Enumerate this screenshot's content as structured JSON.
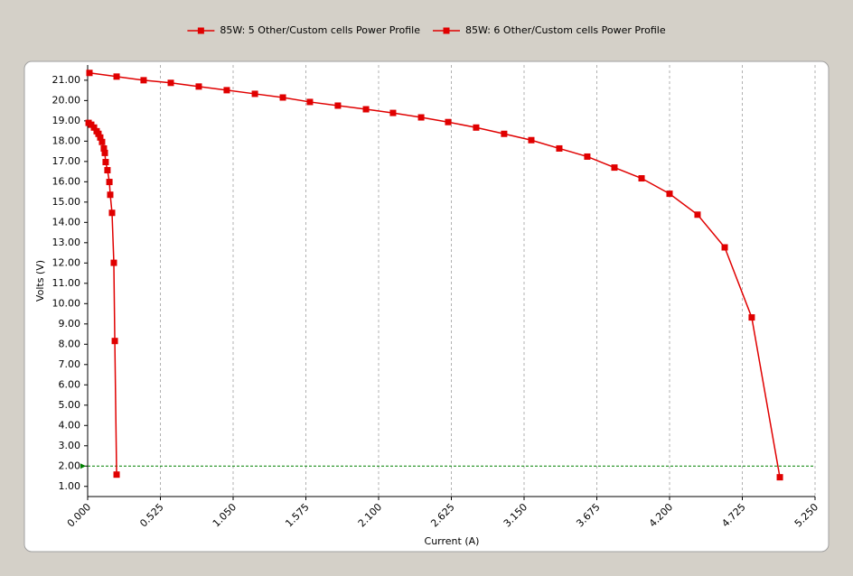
{
  "chart_data": {
    "type": "line",
    "xlabel": "Current (A)",
    "ylabel": "Volts (V)",
    "xlim": [
      0,
      5.25
    ],
    "ylim": [
      0.5,
      21.75
    ],
    "xticks": [
      {
        "value": 0,
        "label": "0.000"
      },
      0.525,
      {
        "value": 1.05,
        "label": "1.050"
      },
      1.575,
      {
        "value": 2.1,
        "label": "2.100"
      },
      2.625,
      {
        "value": 3.15,
        "label": "3.150"
      },
      3.675,
      {
        "value": 4.2,
        "label": "4.200"
      },
      4.725,
      {
        "value": 5.25,
        "label": "5.250"
      }
    ],
    "yticks": [
      {
        "value": 1,
        "label": "1.00"
      },
      {
        "value": 2,
        "label": "2.00"
      },
      {
        "value": 3,
        "label": "3.00"
      },
      {
        "value": 4,
        "label": "4.00"
      },
      {
        "value": 5,
        "label": "5.00"
      },
      {
        "value": 6,
        "label": "6.00"
      },
      {
        "value": 7,
        "label": "7.00"
      },
      {
        "value": 8,
        "label": "8.00"
      },
      {
        "value": 9,
        "label": "9.00"
      },
      {
        "value": 10,
        "label": "10.00"
      },
      {
        "value": 11,
        "label": "11.00"
      },
      {
        "value": 12,
        "label": "12.00"
      },
      {
        "value": 13,
        "label": "13.00"
      },
      {
        "value": 14,
        "label": "14.00"
      },
      {
        "value": 15,
        "label": "15.00"
      },
      {
        "value": 16,
        "label": "16.00"
      },
      {
        "value": 17,
        "label": "17.00"
      },
      {
        "value": 18,
        "label": "18.00"
      },
      {
        "value": 19,
        "label": "19.00"
      },
      {
        "value": 20,
        "label": "20.00"
      },
      {
        "value": 21,
        "label": "21.00"
      }
    ],
    "grid": "x",
    "reference_line": {
      "value": 2,
      "color": "#008000"
    },
    "legend": "top",
    "series": [
      {
        "name": "85W: 5 Other/Custom cells Power Profile",
        "color": "#e00000",
        "x": [
          0.007,
          0.026,
          0.046,
          0.065,
          0.078,
          0.091,
          0.104,
          0.117,
          0.124,
          0.13,
          0.143,
          0.157,
          0.163,
          0.176,
          0.189,
          0.196,
          0.209
        ],
        "values": [
          18.9,
          18.81,
          18.67,
          18.49,
          18.36,
          18.18,
          17.96,
          17.64,
          17.42,
          16.97,
          16.57,
          15.99,
          15.36,
          14.47,
          12.01,
          8.16,
          1.58
        ]
      },
      {
        "name": "85W: 6 Other/Custom cells Power Profile",
        "color": "#e00000",
        "x": [
          0.013,
          0.209,
          0.404,
          0.6,
          0.802,
          1.004,
          1.207,
          1.409,
          1.604,
          1.806,
          2.009,
          2.204,
          2.407,
          2.602,
          2.804,
          3.006,
          3.202,
          3.404,
          3.606,
          3.802,
          3.998,
          4.2,
          4.402,
          4.598,
          4.793,
          4.996
        ],
        "values": [
          21.36,
          21.18,
          21.0,
          20.87,
          20.69,
          20.51,
          20.33,
          20.15,
          19.93,
          19.75,
          19.57,
          19.39,
          19.17,
          18.94,
          18.67,
          18.36,
          18.05,
          17.64,
          17.24,
          16.7,
          16.17,
          15.41,
          14.38,
          12.77,
          9.32,
          1.45
        ]
      }
    ]
  }
}
